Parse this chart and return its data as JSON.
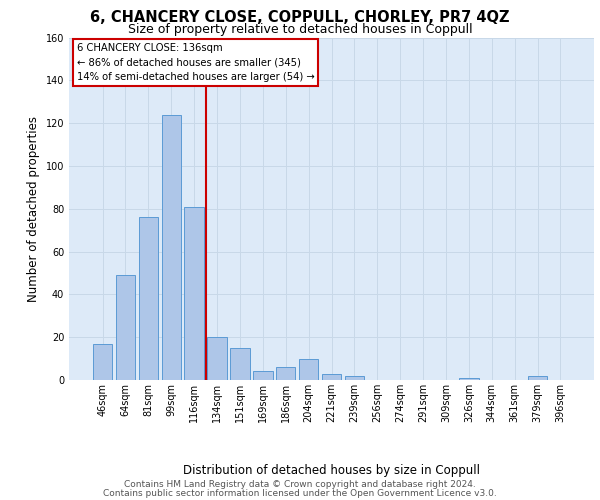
{
  "title1": "6, CHANCERY CLOSE, COPPULL, CHORLEY, PR7 4QZ",
  "title2": "Size of property relative to detached houses in Coppull",
  "xlabel": "Distribution of detached houses by size in Coppull",
  "ylabel": "Number of detached properties",
  "categories": [
    "46sqm",
    "64sqm",
    "81sqm",
    "99sqm",
    "116sqm",
    "134sqm",
    "151sqm",
    "169sqm",
    "186sqm",
    "204sqm",
    "221sqm",
    "239sqm",
    "256sqm",
    "274sqm",
    "291sqm",
    "309sqm",
    "326sqm",
    "344sqm",
    "361sqm",
    "379sqm",
    "396sqm"
  ],
  "values": [
    17,
    49,
    76,
    124,
    81,
    20,
    15,
    4,
    6,
    10,
    3,
    2,
    0,
    0,
    0,
    0,
    1,
    0,
    0,
    2,
    0
  ],
  "bar_color": "#aec6e8",
  "bar_edge_color": "#5b9bd5",
  "grid_color": "#c8d8e8",
  "bg_color": "#ddeaf8",
  "vline_color": "#cc0000",
  "annotation_text": "6 CHANCERY CLOSE: 136sqm\n← 86% of detached houses are smaller (345)\n14% of semi-detached houses are larger (54) →",
  "annotation_box_color": "#ffffff",
  "annotation_box_edge_color": "#cc0000",
  "ylim": [
    0,
    160
  ],
  "yticks": [
    0,
    20,
    40,
    60,
    80,
    100,
    120,
    140,
    160
  ],
  "footnote1": "Contains HM Land Registry data © Crown copyright and database right 2024.",
  "footnote2": "Contains public sector information licensed under the Open Government Licence v3.0.",
  "title1_fontsize": 10.5,
  "title2_fontsize": 9,
  "xlabel_fontsize": 8.5,
  "ylabel_fontsize": 8.5,
  "tick_fontsize": 7,
  "footnote_fontsize": 6.5,
  "vline_pos": 4.5
}
